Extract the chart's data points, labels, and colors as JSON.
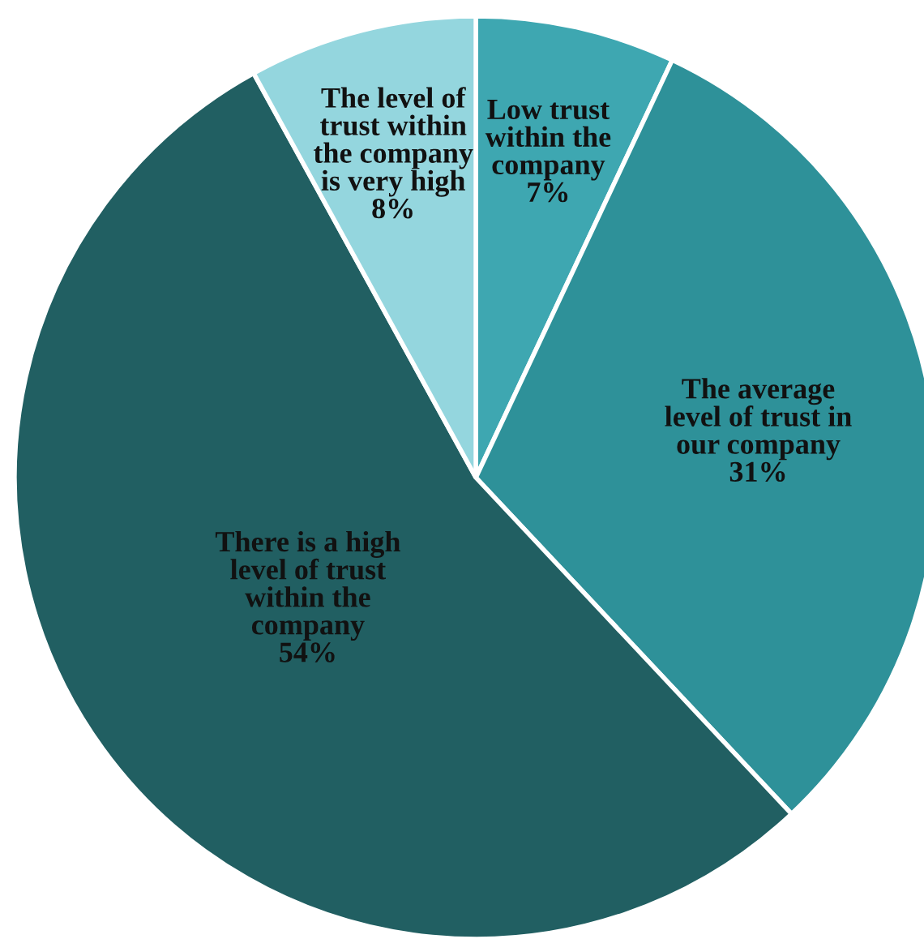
{
  "chart_data": {
    "type": "pie",
    "categories": [
      "Low trust\nwithin the\ncompany",
      "The average\nlevel of trust in\nour company",
      "There is a high\nlevel of trust\nwithin the\ncompany",
      "The level of\ntrust within\nthe company\nis very high"
    ],
    "values": [
      7,
      31,
      54,
      8
    ],
    "value_labels": [
      "7%",
      "31%",
      "54%",
      "8%"
    ],
    "colors": [
      "#3ea7b1",
      "#2e9199",
      "#215f62",
      "#94d6de"
    ]
  }
}
